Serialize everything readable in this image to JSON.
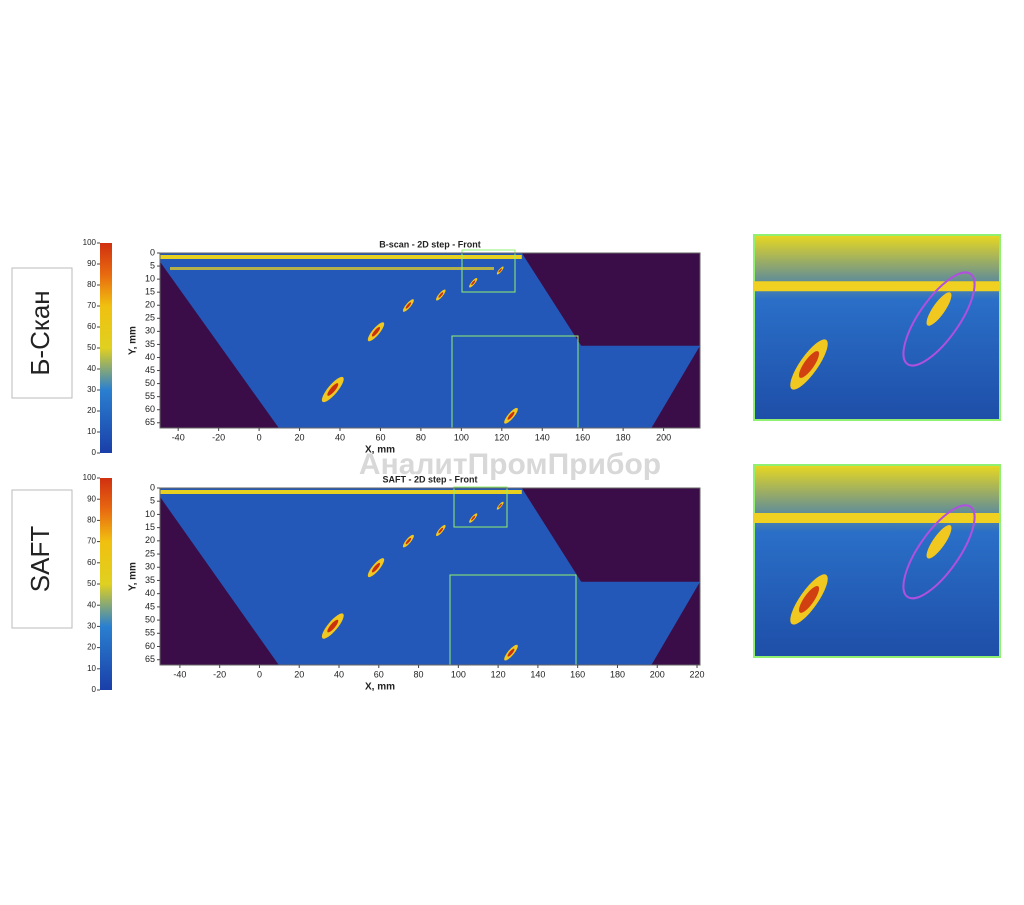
{
  "watermark": "АналитПромПрибор",
  "chart_data": [
    {
      "type": "heatmap",
      "side_label": "Б-Скан",
      "title": "B-scan - 2D step - Front",
      "x_label": "X, mm",
      "y_label": "Y, mm",
      "xlim": [
        -49,
        218
      ],
      "xticks": [
        -40,
        -20,
        0,
        20,
        40,
        60,
        80,
        100,
        120,
        140,
        160,
        180,
        200
      ],
      "ylim": [
        0,
        67
      ],
      "yticks": [
        0,
        5,
        10,
        15,
        20,
        25,
        30,
        35,
        40,
        45,
        50,
        55,
        60,
        65
      ],
      "colorbar_lim": [
        0,
        100
      ],
      "colorbar_ticks": [
        0,
        10,
        20,
        30,
        40,
        50,
        60,
        70,
        80,
        90,
        100
      ]
    },
    {
      "type": "heatmap",
      "side_label": "SAFT",
      "title": "SAFT - 2D step - Front",
      "x_label": "X, mm",
      "y_label": "Y, mm",
      "xlim": [
        -50,
        221.5
      ],
      "xticks": [
        -40,
        -20,
        0,
        20,
        40,
        60,
        80,
        100,
        120,
        140,
        160,
        180,
        200,
        220
      ],
      "ylim": [
        0,
        67
      ],
      "yticks": [
        0,
        5,
        10,
        15,
        20,
        25,
        30,
        35,
        40,
        45,
        50,
        55,
        60,
        65
      ],
      "colorbar_lim": [
        0,
        100
      ],
      "colorbar_ticks": [
        0,
        10,
        20,
        30,
        40,
        50,
        60,
        70,
        80,
        90,
        100
      ]
    }
  ]
}
